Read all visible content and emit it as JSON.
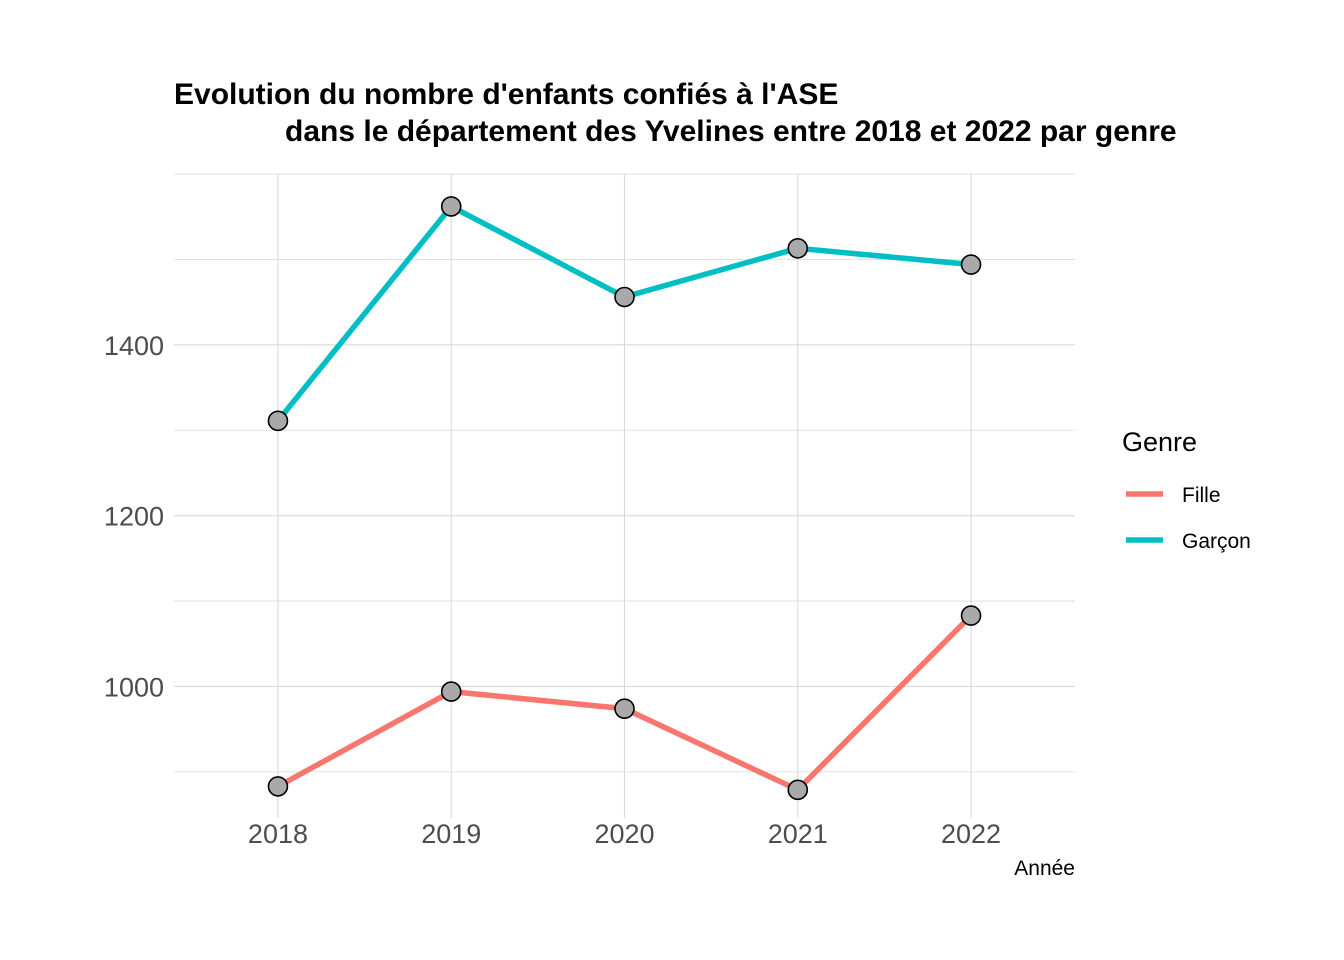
{
  "chart_data": {
    "type": "line",
    "title_line1": "Evolution du nombre d'enfants confiés à l'ASE",
    "title_line2": "dans le département des Yvelines entre 2018 et 2022 par genre",
    "xlabel": "Année",
    "ylabel": "",
    "x": [
      2018,
      2019,
      2020,
      2021,
      2022
    ],
    "x_tick_labels": [
      "2018",
      "2019",
      "2020",
      "2021",
      "2022"
    ],
    "y_ticks": [
      1000,
      1200,
      1400
    ],
    "y_tick_labels": [
      "1000",
      "1200",
      "1400"
    ],
    "ylim": [
      846,
      1600
    ],
    "xlim": [
      2017.4,
      2022.6
    ],
    "grid": true,
    "legend": {
      "title": "Genre",
      "position": "right"
    },
    "series": [
      {
        "name": "Fille",
        "color": "#F8766D",
        "values": [
          883,
          994,
          974,
          879,
          1083
        ]
      },
      {
        "name": "Garçon",
        "color": "#00BFC4",
        "values": [
          1311,
          1562,
          1456,
          1513,
          1494
        ]
      }
    ],
    "point_fill": "#A9A9A9",
    "point_stroke": "#000000"
  }
}
